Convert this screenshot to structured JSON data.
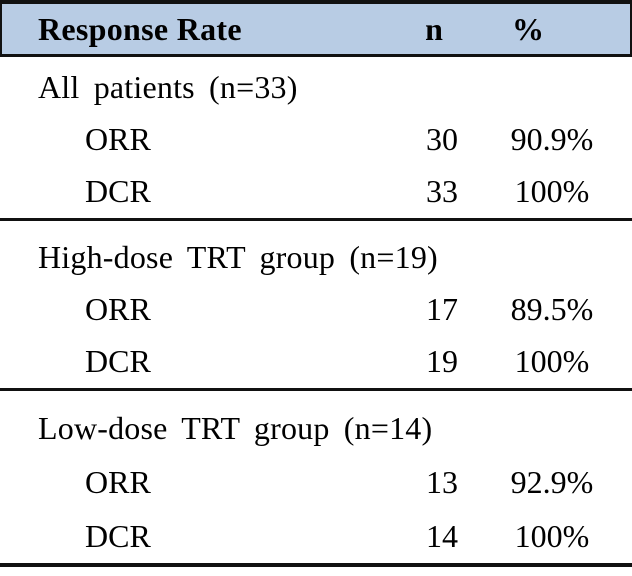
{
  "table": {
    "header": {
      "col1": "Response Rate",
      "col2": "n",
      "col3": "%"
    },
    "sections": [
      {
        "title": "All patients (n=33)",
        "rows": [
          {
            "label": "ORR",
            "n": "30",
            "pct": "90.9%"
          },
          {
            "label": "DCR",
            "n": "33",
            "pct": "100%"
          }
        ]
      },
      {
        "title": "High-dose TRT group (n=19)",
        "rows": [
          {
            "label": "ORR",
            "n": "17",
            "pct": "89.5%"
          },
          {
            "label": "DCR",
            "n": "19",
            "pct": "100%"
          }
        ]
      },
      {
        "title": "Low-dose TRT group (n=14)",
        "rows": [
          {
            "label": "ORR",
            "n": "13",
            "pct": "92.9%"
          },
          {
            "label": "DCR",
            "n": "14",
            "pct": "100%"
          }
        ]
      }
    ],
    "style": {
      "header_bg": "#B8CCE4",
      "border_color": "#111111",
      "text_color": "#000000"
    }
  }
}
